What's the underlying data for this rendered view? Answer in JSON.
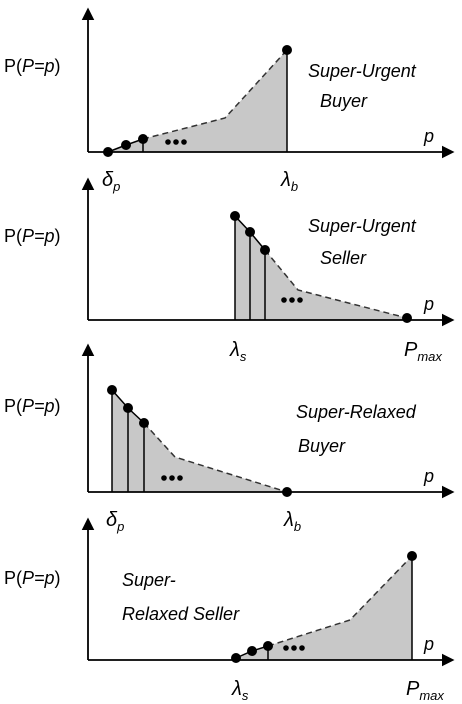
{
  "panels": [
    {
      "title_lines": [
        "Super-Urgent",
        "Buyer"
      ],
      "y_label": {
        "pre": "P(",
        "italic": "P=p",
        "post": ")"
      },
      "x_label": "p",
      "ticks": [
        {
          "symbol": "δ",
          "sub": "p"
        },
        {
          "symbol": "λ",
          "sub": "b"
        }
      ]
    },
    {
      "title_lines": [
        "Super-Urgent",
        "Seller"
      ],
      "y_label": {
        "pre": "P(",
        "italic": "P=p",
        "post": ")"
      },
      "x_label": "p",
      "ticks": [
        {
          "symbol": "λ",
          "sub": "s"
        },
        {
          "symbol": "P",
          "sub": "max"
        }
      ]
    },
    {
      "title_lines": [
        "Super-Relaxed",
        "Buyer"
      ],
      "y_label": {
        "pre": "P(",
        "italic": "P=p",
        "post": ")"
      },
      "x_label": "p",
      "ticks": [
        {
          "symbol": "δ",
          "sub": "p"
        },
        {
          "symbol": "λ",
          "sub": "b"
        }
      ]
    },
    {
      "title_lines": [
        "Super-",
        "Relaxed Seller"
      ],
      "y_label": {
        "pre": "P(",
        "italic": "P=p",
        "post": ")"
      },
      "x_label": "p",
      "ticks": [
        {
          "symbol": "λ",
          "sub": "s"
        },
        {
          "symbol": "P",
          "sub": "max"
        }
      ]
    }
  ]
}
